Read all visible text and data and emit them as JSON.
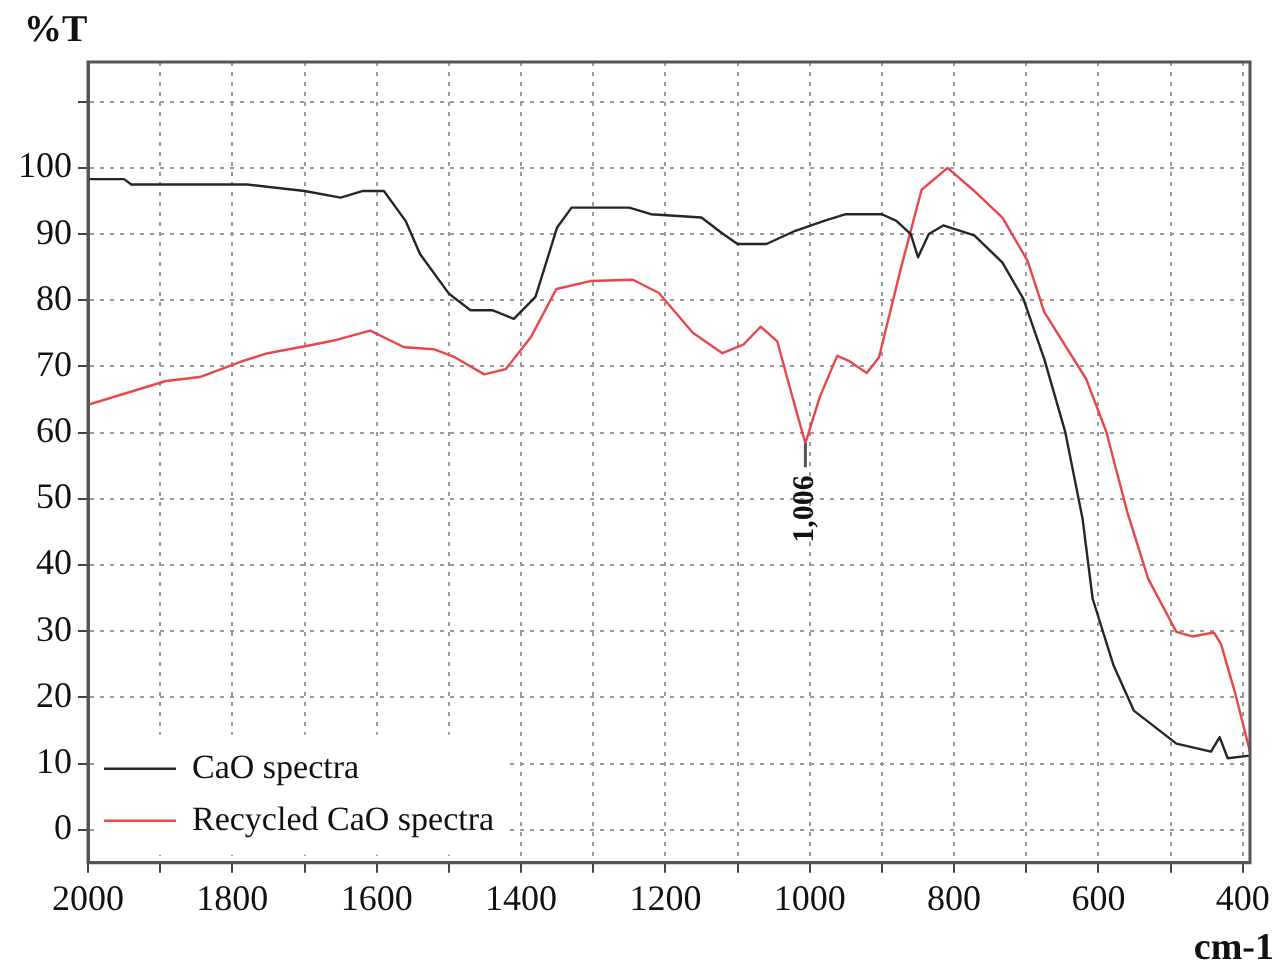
{
  "chart_data": {
    "type": "line",
    "xlabel": "cm-1",
    "ylabel": "%T",
    "xlim": [
      2000,
      390
    ],
    "ylim": [
      -5,
      116
    ],
    "xticks": [
      2000,
      {
        "value": 1900,
        "label": null
      },
      1800,
      {
        "value": 1700,
        "label": null
      },
      1600,
      {
        "value": 1500,
        "label": null
      },
      1400,
      {
        "value": 1300,
        "label": null
      },
      1200,
      {
        "value": 1100,
        "label": null
      },
      1000,
      {
        "value": 900,
        "label": null
      },
      800,
      {
        "value": 700,
        "label": null
      },
      600,
      {
        "value": 500,
        "label": null
      },
      400
    ],
    "yticks": [
      0,
      10,
      20,
      30,
      40,
      50,
      60,
      70,
      80,
      90,
      100,
      {
        "value": 110,
        "label": null
      }
    ],
    "grid": true,
    "legend": "bottom left",
    "marker": "none",
    "line_style": "solid",
    "annotations": [
      {
        "text": "1,006",
        "x": 1006,
        "y": 58.4
      }
    ],
    "series": [
      {
        "name": "CaO spectra",
        "color": "#262626",
        "x": [
          2000,
          1950,
          1940,
          1780,
          1700,
          1650,
          1620,
          1590,
          1560,
          1540,
          1500,
          1470,
          1440,
          1410,
          1380,
          1350,
          1330,
          1250,
          1220,
          1150,
          1120,
          1100,
          1060,
          1020,
          980,
          950,
          900,
          880,
          860,
          850,
          835,
          815,
          772,
          733,
          704,
          675,
          646,
          622,
          608,
          579,
          551,
          492,
          444,
          432,
          421,
          390
        ],
        "values": [
          98.3,
          98.3,
          97.5,
          97.5,
          96.5,
          95.5,
          96.5,
          96.5,
          92,
          87,
          81,
          78.5,
          78.5,
          77.2,
          80.5,
          91,
          94,
          94,
          93,
          92.5,
          90,
          88.5,
          88.5,
          90.5,
          92,
          93,
          93,
          92,
          90,
          86.5,
          90,
          91.3,
          89.8,
          85.7,
          80.2,
          71.1,
          60.1,
          47,
          34.9,
          24.8,
          18,
          13,
          11.8,
          14,
          10.8,
          11.2
        ]
      },
      {
        "name": "Recycled CaO spectra",
        "color": "#e8464b",
        "x": [
          2000,
          1892,
          1845,
          1786,
          1751,
          1692,
          1656,
          1609,
          1562,
          1521,
          1492,
          1451,
          1421,
          1386,
          1351,
          1304,
          1245,
          1209,
          1162,
          1121,
          1092,
          1068,
          1045,
          1021,
          1006,
          986,
          962,
          945,
          921,
          904,
          874,
          845,
          809,
          774,
          733,
          698,
          675,
          617,
          589,
          560,
          531,
          492,
          470,
          440,
          430,
          410,
          390
        ],
        "values": [
          64.2,
          67.8,
          68.4,
          70.8,
          72,
          73.2,
          74,
          75.4,
          72.9,
          72.6,
          71.4,
          68.8,
          69.6,
          74.5,
          81.7,
          82.9,
          83.1,
          81.1,
          75.1,
          72,
          73.3,
          76,
          73.8,
          64.2,
          58.4,
          65.4,
          71.6,
          70.8,
          69,
          71.4,
          84.7,
          96.7,
          100,
          96.7,
          92.5,
          85.9,
          78.2,
          68.1,
          60.1,
          48,
          37.9,
          29.9,
          29.2,
          29.8,
          28,
          20.4,
          11.8
        ]
      }
    ]
  }
}
